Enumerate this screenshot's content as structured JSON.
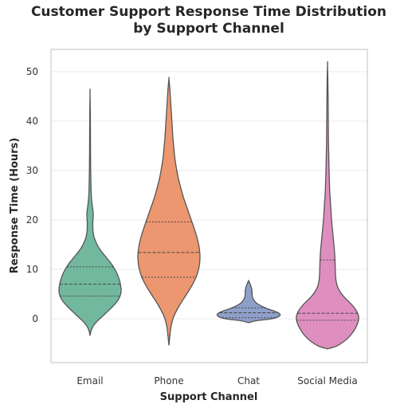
{
  "chart_data": {
    "type": "violin",
    "title": [
      "Customer Support Response Time Distribution",
      "by Support Channel"
    ],
    "xlabel": "Support Channel",
    "ylabel": "Response Time (Hours)",
    "ylim": [
      -9,
      55
    ],
    "yticks": [
      0,
      10,
      20,
      30,
      40,
      50
    ],
    "grid": true,
    "categories": [
      "Email",
      "Phone",
      "Chat",
      "Social Media"
    ],
    "colors": [
      "#72b89f",
      "#ec9770",
      "#8e9fc9",
      "#df8fbf"
    ],
    "series": [
      {
        "category": "Email",
        "quartiles": [
          4.6,
          7.0,
          10.5
        ],
        "min": -3.4,
        "max": 46.0,
        "density_profile": [
          [
            -3.4,
            0
          ],
          [
            -2.5,
            0.03
          ],
          [
            -1.5,
            0.1
          ],
          [
            -0.5,
            0.23
          ],
          [
            0.5,
            0.4
          ],
          [
            1.5,
            0.57
          ],
          [
            2.5,
            0.73
          ],
          [
            3.5,
            0.87
          ],
          [
            4.5,
            0.96
          ],
          [
            5.5,
            1.0
          ],
          [
            6.5,
            0.99
          ],
          [
            7.5,
            0.96
          ],
          [
            8.5,
            0.91
          ],
          [
            9.5,
            0.84
          ],
          [
            10.5,
            0.75
          ],
          [
            11.5,
            0.64
          ],
          [
            12.5,
            0.51
          ],
          [
            13.5,
            0.38
          ],
          [
            14.5,
            0.27
          ],
          [
            15.5,
            0.19
          ],
          [
            16.5,
            0.13
          ],
          [
            17.5,
            0.1
          ],
          [
            18.5,
            0.09
          ],
          [
            19.5,
            0.09
          ],
          [
            20.5,
            0.1
          ],
          [
            21.5,
            0.1
          ],
          [
            22.5,
            0.08
          ],
          [
            23.5,
            0.06
          ],
          [
            25,
            0.04
          ],
          [
            27,
            0.03
          ],
          [
            30,
            0.02
          ],
          [
            34,
            0.015
          ],
          [
            38,
            0.012
          ],
          [
            42,
            0.008
          ],
          [
            46,
            0
          ]
        ]
      },
      {
        "category": "Phone",
        "quartiles": [
          8.4,
          13.4,
          19.6
        ],
        "min": -5.4,
        "max": 48.6,
        "density_profile": [
          [
            -5.4,
            0
          ],
          [
            -3.5,
            0.03
          ],
          [
            -1.5,
            0.07
          ],
          [
            0.5,
            0.16
          ],
          [
            2.5,
            0.32
          ],
          [
            4.5,
            0.52
          ],
          [
            6.5,
            0.72
          ],
          [
            8.5,
            0.88
          ],
          [
            10.5,
            0.97
          ],
          [
            12.5,
            1.0
          ],
          [
            14.5,
            0.97
          ],
          [
            16.5,
            0.9
          ],
          [
            18.5,
            0.8
          ],
          [
            20.5,
            0.69
          ],
          [
            22.5,
            0.58
          ],
          [
            24.5,
            0.47
          ],
          [
            26.5,
            0.38
          ],
          [
            28.5,
            0.3
          ],
          [
            30.5,
            0.24
          ],
          [
            32.5,
            0.19
          ],
          [
            34.5,
            0.16
          ],
          [
            36.5,
            0.13
          ],
          [
            38.5,
            0.11
          ],
          [
            40.5,
            0.09
          ],
          [
            42.5,
            0.07
          ],
          [
            44.5,
            0.05
          ],
          [
            46.5,
            0.03
          ],
          [
            48.6,
            0
          ]
        ]
      },
      {
        "category": "Chat",
        "quartiles": [
          0.2,
          1.2,
          2.2
        ],
        "min": -0.8,
        "max": 7.7,
        "density_profile": [
          [
            -0.8,
            0
          ],
          [
            -0.4,
            0.25
          ],
          [
            0.0,
            0.75
          ],
          [
            0.5,
            0.98
          ],
          [
            1.0,
            1.0
          ],
          [
            1.5,
            0.85
          ],
          [
            2.0,
            0.62
          ],
          [
            2.5,
            0.43
          ],
          [
            3.0,
            0.29
          ],
          [
            3.5,
            0.2
          ],
          [
            4.0,
            0.15
          ],
          [
            4.5,
            0.12
          ],
          [
            5.0,
            0.11
          ],
          [
            5.5,
            0.11
          ],
          [
            6.0,
            0.1
          ],
          [
            6.5,
            0.08
          ],
          [
            7.0,
            0.05
          ],
          [
            7.7,
            0
          ]
        ]
      },
      {
        "category": "Social Media",
        "quartiles": [
          -0.3,
          1.1,
          11.9
        ],
        "min": -6.1,
        "max": 51.6,
        "density_profile": [
          [
            -6.1,
            0
          ],
          [
            -5.5,
            0.3
          ],
          [
            -4.5,
            0.55
          ],
          [
            -3.5,
            0.72
          ],
          [
            -2.5,
            0.84
          ],
          [
            -1.5,
            0.93
          ],
          [
            -0.5,
            0.99
          ],
          [
            0.5,
            1.0
          ],
          [
            1.5,
            0.94
          ],
          [
            2.5,
            0.83
          ],
          [
            3.5,
            0.68
          ],
          [
            4.5,
            0.52
          ],
          [
            5.5,
            0.4
          ],
          [
            6.5,
            0.32
          ],
          [
            7.5,
            0.28
          ],
          [
            8.5,
            0.26
          ],
          [
            10,
            0.25
          ],
          [
            12,
            0.24
          ],
          [
            14,
            0.22
          ],
          [
            16,
            0.19
          ],
          [
            18,
            0.16
          ],
          [
            20,
            0.13
          ],
          [
            22,
            0.11
          ],
          [
            24,
            0.09
          ],
          [
            26,
            0.07
          ],
          [
            28,
            0.06
          ],
          [
            30,
            0.05
          ],
          [
            33,
            0.04
          ],
          [
            36,
            0.03
          ],
          [
            40,
            0.025
          ],
          [
            44,
            0.02
          ],
          [
            48,
            0.012
          ],
          [
            51.6,
            0
          ]
        ]
      }
    ]
  }
}
